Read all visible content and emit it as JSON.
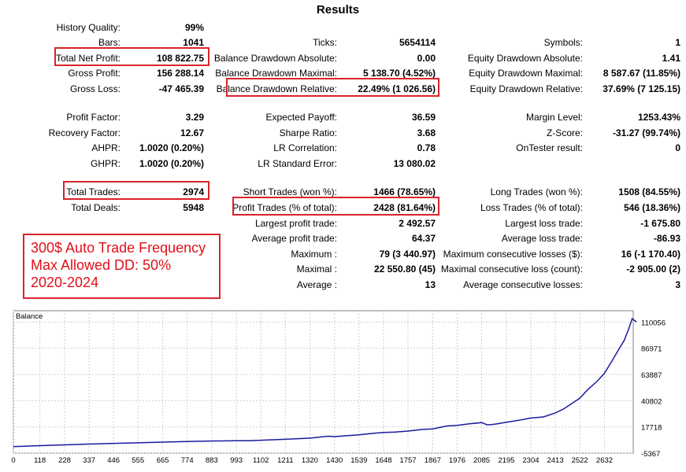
{
  "title": "Results",
  "stats": {
    "history_quality": {
      "label": "History Quality:",
      "value": "99%"
    },
    "bars": {
      "label": "Bars:",
      "value": "1041"
    },
    "total_net_profit": {
      "label": "Total Net Profit:",
      "value": "108 822.75"
    },
    "gross_profit": {
      "label": "Gross Profit:",
      "value": "156 288.14"
    },
    "gross_loss": {
      "label": "Gross Loss:",
      "value": "-47 465.39"
    },
    "ticks": {
      "label": "Ticks:",
      "value": "5654114"
    },
    "balance_dd_absolute": {
      "label": "Balance Drawdown Absolute:",
      "value": "0.00"
    },
    "balance_dd_maximal": {
      "label": "Balance Drawdown Maximal:",
      "value": "5 138.70 (4.52%)"
    },
    "balance_dd_relative": {
      "label": "Balance Drawdown Relative:",
      "value": "22.49% (1 026.56)"
    },
    "symbols": {
      "label": "Symbols:",
      "value": "1"
    },
    "equity_dd_absolute": {
      "label": "Equity Drawdown Absolute:",
      "value": "1.41"
    },
    "equity_dd_maximal": {
      "label": "Equity Drawdown Maximal:",
      "value": "8 587.67 (11.85%)"
    },
    "equity_dd_relative": {
      "label": "Equity Drawdown Relative:",
      "value": "37.69% (7 125.15)"
    },
    "profit_factor": {
      "label": "Profit Factor:",
      "value": "3.29"
    },
    "recovery_factor": {
      "label": "Recovery Factor:",
      "value": "12.67"
    },
    "ahpr": {
      "label": "AHPR:",
      "value": "1.0020 (0.20%)"
    },
    "ghpr": {
      "label": "GHPR:",
      "value": "1.0020 (0.20%)"
    },
    "expected_payoff": {
      "label": "Expected Payoff:",
      "value": "36.59"
    },
    "sharpe_ratio": {
      "label": "Sharpe Ratio:",
      "value": "3.68"
    },
    "lr_correlation": {
      "label": "LR Correlation:",
      "value": "0.78"
    },
    "lr_standard_error": {
      "label": "LR Standard Error:",
      "value": "13 080.02"
    },
    "margin_level": {
      "label": "Margin Level:",
      "value": "1253.43%"
    },
    "z_score": {
      "label": "Z-Score:",
      "value": "-31.27 (99.74%)"
    },
    "ontester_result": {
      "label": "OnTester result:",
      "value": "0"
    },
    "total_trades": {
      "label": "Total Trades:",
      "value": "2974"
    },
    "total_deals": {
      "label": "Total Deals:",
      "value": "5948"
    },
    "short_trades": {
      "label": "Short Trades (won %):",
      "value": "1466 (78.65%)"
    },
    "profit_trades": {
      "label": "Profit Trades (% of total):",
      "value": "2428 (81.64%)"
    },
    "largest_profit_trade": {
      "label": "Largest profit trade:",
      "value": "2 492.57"
    },
    "average_profit_trade": {
      "label": "Average profit trade:",
      "value": "64.37"
    },
    "maximum_consec_wins": {
      "label": "Maximum :",
      "value": "79 (3 440.97)"
    },
    "maximal_consec_profit": {
      "label": "Maximal :",
      "value": "22 550.80 (45)"
    },
    "average_consec_wins": {
      "label": "Average :",
      "value": "13"
    },
    "long_trades": {
      "label": "Long Trades (won %):",
      "value": "1508 (84.55%)"
    },
    "loss_trades": {
      "label": "Loss Trades (% of total):",
      "value": "546 (18.36%)"
    },
    "largest_loss_trade": {
      "label": "Largest loss trade:",
      "value": "-1 675.80"
    },
    "average_loss_trade": {
      "label": "Average loss trade:",
      "value": "-86.93"
    },
    "max_consec_losses": {
      "label": "Maximum consecutive losses ($):",
      "value": "16 (-1 170.40)"
    },
    "maximal_consec_loss": {
      "label": "Maximal consecutive loss (count):",
      "value": "-2 905.00 (2)"
    },
    "average_consec_losses": {
      "label": "Average consecutive losses:",
      "value": "3"
    }
  },
  "note": {
    "line1": "300$ Auto Trade Frequency",
    "line2": "Max Allowed DD: 50%",
    "line3": "2020-2024"
  },
  "colors": {
    "highlight": "#d9232a",
    "note_text": "#e0101a",
    "balance_line": "#1a1a9e",
    "grid": "#d0d0d0"
  },
  "chart_data": {
    "type": "line",
    "title": "Balance",
    "x_ticks": [
      0,
      118,
      228,
      337,
      446,
      555,
      665,
      774,
      883,
      993,
      1102,
      1211,
      1320,
      1430,
      1539,
      1648,
      1757,
      1867,
      1976,
      2085,
      2195,
      2304,
      2413,
      2522,
      2632
    ],
    "y_ticks": [
      -5367,
      17718,
      40802,
      63887,
      86971,
      110056
    ],
    "xlim": [
      0,
      2760
    ],
    "ylim": [
      -5367,
      120000
    ],
    "series": [
      {
        "values": [
          [
            0,
            300
          ],
          [
            118,
            1200
          ],
          [
            228,
            1900
          ],
          [
            337,
            2600
          ],
          [
            446,
            3200
          ],
          [
            555,
            3700
          ],
          [
            665,
            4300
          ],
          [
            774,
            4800
          ],
          [
            883,
            5300
          ],
          [
            993,
            5600
          ],
          [
            1050,
            5500
          ],
          [
            1102,
            6000
          ],
          [
            1211,
            6800
          ],
          [
            1320,
            7800
          ],
          [
            1400,
            9500
          ],
          [
            1430,
            9200
          ],
          [
            1539,
            10800
          ],
          [
            1600,
            12000
          ],
          [
            1648,
            12800
          ],
          [
            1700,
            13200
          ],
          [
            1757,
            14000
          ],
          [
            1820,
            15500
          ],
          [
            1867,
            16000
          ],
          [
            1930,
            18500
          ],
          [
            1976,
            19000
          ],
          [
            2030,
            20500
          ],
          [
            2085,
            21500
          ],
          [
            2110,
            19500
          ],
          [
            2140,
            20000
          ],
          [
            2195,
            21800
          ],
          [
            2250,
            23500
          ],
          [
            2304,
            25500
          ],
          [
            2360,
            26500
          ],
          [
            2413,
            30000
          ],
          [
            2450,
            33500
          ],
          [
            2522,
            43000
          ],
          [
            2560,
            51000
          ],
          [
            2600,
            58000
          ],
          [
            2632,
            65000
          ],
          [
            2660,
            74000
          ],
          [
            2690,
            84000
          ],
          [
            2720,
            94000
          ],
          [
            2740,
            104000
          ],
          [
            2755,
            113000
          ],
          [
            2775,
            110000
          ]
        ]
      }
    ]
  }
}
